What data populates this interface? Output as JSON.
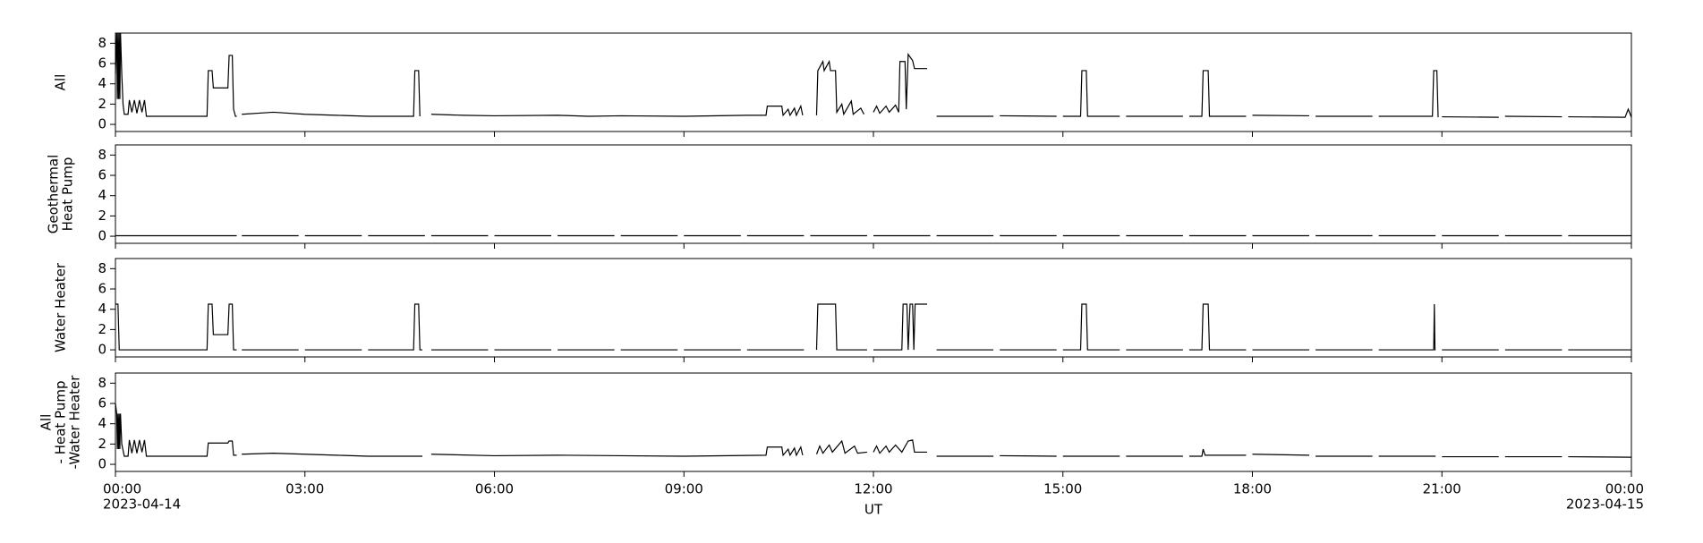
{
  "chart_data": [
    {
      "type": "line",
      "ylabel": [
        "All"
      ],
      "xlim": [
        0,
        24
      ],
      "xticks": [
        0,
        3,
        6,
        9,
        12,
        15,
        18,
        21,
        24
      ],
      "ylim": [
        -0.7,
        9
      ],
      "yticks": [
        0,
        2,
        4,
        6,
        8
      ],
      "series": [
        {
          "color": "#000000",
          "x": [
            0,
            0.02,
            0.03,
            0.04,
            0.05,
            0.06,
            0.07,
            0.08,
            0.1,
            0.12,
            0.14,
            0.2,
            0.22,
            0.26,
            0.3,
            0.34,
            0.38,
            0.42,
            0.46,
            0.49,
            1.45,
            1.47,
            1.53,
            1.55,
            1.78,
            1.8,
            1.85,
            1.87,
            1.9,
            1.92,
            1.96,
            2,
            2.5,
            3,
            3.5,
            4,
            4.72,
            4.74,
            4.8,
            4.82,
            4.9,
            5,
            5.5,
            6,
            7,
            7.5,
            8,
            9,
            10,
            10.3,
            10.32,
            10.55,
            10.57,
            10.65,
            10.68,
            10.75,
            10.78,
            10.85,
            10.88,
            10.96,
            11.1,
            11.12,
            11.2,
            11.22,
            11.3,
            11.32,
            11.4,
            11.42,
            11.5,
            11.53,
            11.65,
            11.68,
            11.8,
            11.85,
            11.96,
            12,
            12.05,
            12.1,
            12.2,
            12.25,
            12.35,
            12.4,
            12.42,
            12.5,
            12.52,
            12.55,
            12.62,
            12.65,
            12.85,
            12.96,
            13,
            13.9,
            13.96,
            14,
            14.9,
            14.96,
            15,
            15.28,
            15.3,
            15.37,
            15.39,
            15.9,
            15.96,
            16,
            16.9,
            16.96,
            17,
            17.2,
            17.22,
            17.3,
            17.32,
            17.9,
            17.96,
            18,
            18.9,
            18.96,
            19,
            19.9,
            19.96,
            20,
            20.85,
            20.87,
            20.92,
            20.94,
            20.96,
            21,
            21.9,
            21.96,
            22,
            22.9,
            22.96,
            23,
            23.9,
            23.95,
            24
          ],
          "values": [
            5,
            9,
            2.5,
            9,
            2.5,
            9,
            2.5,
            9,
            5,
            2,
            1,
            1,
            2.4,
            1.2,
            2.4,
            1.1,
            2.4,
            1.2,
            2.4,
            0.8,
            0.8,
            5.3,
            5.3,
            3.6,
            3.6,
            6.8,
            6.8,
            1.5,
            0.8,
            0.8,
            null,
            1,
            1.2,
            1,
            0.9,
            0.8,
            0.8,
            5.3,
            5.3,
            0.8,
            null,
            1,
            0.9,
            0.85,
            0.9,
            0.8,
            0.85,
            0.8,
            0.9,
            0.9,
            1.8,
            1.8,
            0.9,
            1.5,
            0.9,
            1.6,
            0.9,
            1.8,
            0.9,
            null,
            0.9,
            5.3,
            6.2,
            5.3,
            6.2,
            5.3,
            5.3,
            1.2,
            2,
            1,
            2.3,
            1,
            1.6,
            1,
            null,
            1.2,
            1.8,
            1.1,
            1.8,
            1.2,
            1.9,
            1.2,
            6.2,
            6.2,
            1.5,
            6.9,
            6.3,
            5.5,
            5.5,
            null,
            0.8,
            0.8,
            null,
            0.85,
            0.8,
            null,
            0.8,
            0.8,
            5.3,
            5.3,
            0.8,
            0.8,
            null,
            0.8,
            0.8,
            null,
            0.8,
            0.8,
            5.3,
            5.3,
            0.8,
            0.8,
            null,
            0.9,
            0.85,
            null,
            0.8,
            0.8,
            null,
            0.8,
            0.8,
            5.3,
            5.3,
            0.7,
            null,
            0.75,
            0.7,
            null,
            0.8,
            0.75,
            null,
            0.75,
            0.7,
            1.5,
            0.7
          ]
        }
      ]
    },
    {
      "type": "line",
      "ylabel": [
        "Geothermal",
        "Heat Pump"
      ],
      "xlim": [
        0,
        24
      ],
      "xticks": [
        0,
        3,
        6,
        9,
        12,
        15,
        18,
        21,
        24
      ],
      "ylim": [
        -0.7,
        9
      ],
      "yticks": [
        0,
        2,
        4,
        6,
        8
      ],
      "series": [
        {
          "color": "#000000",
          "x": [
            0,
            1.92,
            1.96,
            2,
            2.9,
            2.96,
            3,
            3.9,
            3.96,
            4,
            4.9,
            4.96,
            5,
            5.9,
            5.96,
            6,
            6.9,
            6.96,
            7,
            7.9,
            7.96,
            8,
            8.9,
            8.96,
            9,
            9.9,
            9.96,
            10,
            10.9,
            10.96,
            11,
            11.9,
            11.96,
            12,
            12.9,
            12.96,
            13,
            13.9,
            13.96,
            14,
            14.9,
            14.96,
            15,
            15.9,
            15.96,
            16,
            16.9,
            16.96,
            17,
            17.9,
            17.96,
            18,
            18.9,
            18.96,
            19,
            19.9,
            19.96,
            20,
            20.9,
            20.96,
            21,
            21.9,
            21.96,
            22,
            22.9,
            22.96,
            23,
            24
          ],
          "values": [
            0.05,
            0.05,
            null,
            0.05,
            0.05,
            null,
            0.05,
            0.05,
            null,
            0.05,
            0.05,
            null,
            0.05,
            0.05,
            null,
            0.05,
            0.05,
            null,
            0.05,
            0.05,
            null,
            0.05,
            0.05,
            null,
            0.05,
            0.05,
            null,
            0.05,
            0.05,
            null,
            0.05,
            0.05,
            null,
            0.05,
            0.05,
            null,
            0.05,
            0.05,
            null,
            0.05,
            0.05,
            null,
            0.05,
            0.05,
            null,
            0.05,
            0.05,
            null,
            0.05,
            0.05,
            null,
            0.05,
            0.05,
            null,
            0.05,
            0.05,
            null,
            0.05,
            0.05,
            null,
            0.05,
            0.05,
            null,
            0.05,
            0.05,
            null,
            0.05,
            0.05
          ]
        }
      ]
    },
    {
      "type": "line",
      "ylabel": [
        "Water Heater"
      ],
      "xlim": [
        0,
        24
      ],
      "xticks": [
        0,
        3,
        6,
        9,
        12,
        15,
        18,
        21,
        24
      ],
      "ylim": [
        -0.7,
        9
      ],
      "yticks": [
        0,
        2,
        4,
        6,
        8
      ],
      "series": [
        {
          "color": "#000000",
          "x": [
            0,
            0.04,
            0.06,
            1.45,
            1.47,
            1.53,
            1.55,
            1.78,
            1.8,
            1.85,
            1.87,
            1.92,
            1.96,
            2,
            2.9,
            2.96,
            3,
            3.9,
            3.96,
            4,
            4.72,
            4.74,
            4.8,
            4.82,
            4.86,
            4.93,
            5,
            5.9,
            5.96,
            6,
            6.9,
            6.96,
            7,
            7.9,
            7.96,
            8,
            8.9,
            8.96,
            9,
            9.9,
            9.96,
            10,
            10.9,
            10.96,
            11.1,
            11.12,
            11.4,
            11.42,
            11.9,
            11.96,
            12,
            12.45,
            12.47,
            12.53,
            12.55,
            12.58,
            12.62,
            12.64,
            12.66,
            12.85,
            12.96,
            13,
            13.9,
            13.96,
            14,
            14.9,
            14.96,
            15,
            15.28,
            15.3,
            15.37,
            15.39,
            15.9,
            15.96,
            16,
            16.9,
            16.96,
            17,
            17.2,
            17.22,
            17.3,
            17.32,
            17.9,
            17.96,
            18,
            18.9,
            18.96,
            19,
            19.9,
            19.96,
            20,
            20.87,
            20.88,
            20.89,
            20.9,
            20.96,
            21,
            21.9,
            21.96,
            22,
            22.9,
            22.96,
            23,
            24
          ],
          "values": [
            4.5,
            4.5,
            0,
            0,
            4.5,
            4.5,
            1.5,
            1.5,
            4.5,
            4.5,
            0,
            0,
            null,
            0,
            0,
            null,
            0,
            0,
            null,
            0,
            0,
            4.5,
            4.5,
            0,
            0,
            null,
            0,
            0,
            null,
            0,
            0,
            null,
            0,
            0,
            null,
            0,
            0,
            null,
            0,
            0,
            null,
            0,
            0,
            null,
            0,
            4.5,
            4.5,
            0,
            0,
            null,
            0,
            0,
            4.5,
            4.5,
            0,
            4.5,
            4.5,
            0,
            4.5,
            4.5,
            null,
            0,
            0,
            null,
            0,
            0,
            null,
            0,
            0,
            4.5,
            4.5,
            0,
            0,
            null,
            0,
            0,
            null,
            0,
            0,
            4.5,
            4.5,
            0,
            0,
            null,
            0,
            0,
            null,
            0,
            0,
            null,
            0,
            0,
            4.5,
            0,
            0,
            null,
            0,
            0,
            null,
            0,
            0,
            null,
            0,
            0
          ]
        }
      ]
    },
    {
      "type": "line",
      "ylabel": [
        "All",
        "- Heat Pump",
        "-Water Heater"
      ],
      "xlabel": "UT",
      "xlim": [
        0,
        24
      ],
      "xticks": [
        {
          "value": 0,
          "label": "00:00",
          "date": "2023-04-14"
        },
        {
          "value": 3,
          "label": "03:00"
        },
        {
          "value": 6,
          "label": "06:00"
        },
        {
          "value": 9,
          "label": "09:00"
        },
        {
          "value": 12,
          "label": "12:00"
        },
        {
          "value": 15,
          "label": "15:00"
        },
        {
          "value": 18,
          "label": "18:00"
        },
        {
          "value": 21,
          "label": "21:00"
        },
        {
          "value": 24,
          "label": "00:00",
          "date": "2023-04-15"
        }
      ],
      "ylim": [
        -0.7,
        9
      ],
      "yticks": [
        0,
        2,
        4,
        6,
        8
      ],
      "series": [
        {
          "color": "#000000",
          "x": [
            0,
            0.02,
            0.03,
            0.04,
            0.05,
            0.06,
            0.07,
            0.08,
            0.1,
            0.14,
            0.2,
            0.22,
            0.26,
            0.3,
            0.34,
            0.38,
            0.42,
            0.46,
            0.49,
            1.45,
            1.47,
            1.78,
            1.8,
            1.85,
            1.87,
            1.92,
            1.96,
            2,
            2.5,
            3,
            3.5,
            4,
            4.86,
            4.93,
            5,
            6,
            7,
            8,
            9,
            10.3,
            10.32,
            10.55,
            10.57,
            10.65,
            10.68,
            10.75,
            10.78,
            10.85,
            10.88,
            10.96,
            11.1,
            11.15,
            11.2,
            11.3,
            11.35,
            11.5,
            11.55,
            11.7,
            11.75,
            11.9,
            11.96,
            12,
            12.05,
            12.1,
            12.2,
            12.25,
            12.35,
            12.45,
            12.55,
            12.62,
            12.65,
            12.85,
            12.96,
            13,
            13.9,
            13.96,
            14,
            14.9,
            14.96,
            15,
            15.9,
            15.96,
            16,
            16.9,
            16.96,
            17,
            17.2,
            17.22,
            17.25,
            17.9,
            17.96,
            18,
            18.9,
            18.96,
            19,
            19.9,
            19.96,
            20,
            20.9,
            20.96,
            21,
            21.9,
            21.96,
            22,
            22.9,
            22.96,
            23,
            24
          ],
          "values": [
            6,
            5,
            1.5,
            5,
            1.5,
            5,
            1.5,
            5,
            2,
            0.8,
            0.8,
            2.4,
            1.1,
            2.4,
            1.1,
            2.4,
            1.2,
            2.4,
            0.8,
            0.8,
            2.1,
            2.1,
            2.3,
            2.3,
            0.9,
            0.9,
            null,
            1,
            1.1,
            1,
            0.9,
            0.8,
            0.8,
            null,
            1,
            0.85,
            0.9,
            0.85,
            0.8,
            0.9,
            1.7,
            1.7,
            0.9,
            1.5,
            0.9,
            1.6,
            0.9,
            1.7,
            0.9,
            null,
            1,
            1.8,
            1.1,
            1.9,
            1.2,
            2.3,
            1.1,
            1.8,
            1.1,
            1.2,
            null,
            1.2,
            1.8,
            1.1,
            1.8,
            1.2,
            1.9,
            1.2,
            2.3,
            2.4,
            1.2,
            1.2,
            null,
            0.8,
            0.8,
            null,
            0.85,
            0.8,
            null,
            0.8,
            0.8,
            null,
            0.8,
            0.8,
            null,
            0.8,
            0.8,
            1.5,
            0.9,
            0.9,
            null,
            1,
            0.9,
            null,
            0.8,
            0.8,
            null,
            0.8,
            0.8,
            null,
            0.75,
            0.75,
            null,
            0.75,
            0.75,
            null,
            0.75,
            0.7
          ]
        }
      ]
    }
  ]
}
